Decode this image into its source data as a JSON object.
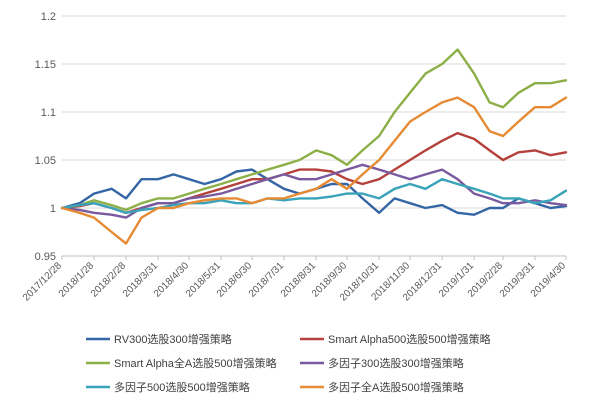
{
  "chart_data": {
    "type": "line",
    "title": "",
    "xlabel": "",
    "ylabel": "",
    "ylim": [
      0.95,
      1.2
    ],
    "y_ticks": [
      "0.95",
      "1",
      "1.05",
      "1.1",
      "1.15",
      "1.2"
    ],
    "x_ticks": [
      "2017/12/28",
      "2018/1/28",
      "2018/2/28",
      "2018/3/31",
      "2018/4/30",
      "2018/5/31",
      "2018/6/30",
      "2018/7/31",
      "2018/8/31",
      "2018/9/30",
      "2018/10/31",
      "2018/11/30",
      "2018/12/31",
      "2019/1/31",
      "2019/2/28",
      "2019/3/31",
      "2019/4/30"
    ],
    "grid": true,
    "legend_position": "bottom",
    "x": [
      "2017/12/28",
      "2018/1/14",
      "2018/1/28",
      "2018/2/14",
      "2018/2/28",
      "2018/3/15",
      "2018/3/31",
      "2018/4/15",
      "2018/4/30",
      "2018/5/15",
      "2018/5/31",
      "2018/6/15",
      "2018/6/30",
      "2018/7/15",
      "2018/7/31",
      "2018/8/15",
      "2018/8/31",
      "2018/9/15",
      "2018/9/30",
      "2018/10/15",
      "2018/10/31",
      "2018/11/15",
      "2018/11/30",
      "2018/12/15",
      "2018/12/31",
      "2019/1/15",
      "2019/1/31",
      "2019/2/15",
      "2019/2/28",
      "2019/3/15",
      "2019/3/31",
      "2019/4/15",
      "2019/4/30"
    ],
    "series": [
      {
        "name": "RV300选股300增强策略",
        "color": "#3466A5",
        "values": [
          1.0,
          1.005,
          1.015,
          1.02,
          1.01,
          1.03,
          1.03,
          1.035,
          1.03,
          1.025,
          1.03,
          1.038,
          1.04,
          1.03,
          1.02,
          1.015,
          1.02,
          1.025,
          1.025,
          1.01,
          0.995,
          1.01,
          1.005,
          1.0,
          1.003,
          0.995,
          0.993,
          1.0,
          1.0,
          1.01,
          1.005,
          1.0,
          1.002
        ]
      },
      {
        "name": "Smart Alpha500选股500增强策略",
        "color": "#B5413C",
        "values": [
          1.0,
          1.002,
          1.005,
          1.0,
          0.995,
          1.0,
          1.005,
          1.005,
          1.01,
          1.015,
          1.02,
          1.025,
          1.03,
          1.03,
          1.035,
          1.04,
          1.04,
          1.038,
          1.03,
          1.025,
          1.03,
          1.04,
          1.05,
          1.06,
          1.07,
          1.078,
          1.072,
          1.06,
          1.05,
          1.058,
          1.06,
          1.055,
          1.058
        ]
      },
      {
        "name": "Smart Alpha全A选股500增强策略",
        "color": "#8CAF47",
        "values": [
          1.0,
          1.003,
          1.008,
          1.003,
          0.998,
          1.005,
          1.01,
          1.01,
          1.015,
          1.02,
          1.025,
          1.03,
          1.035,
          1.04,
          1.045,
          1.05,
          1.06,
          1.055,
          1.045,
          1.06,
          1.075,
          1.1,
          1.12,
          1.14,
          1.15,
          1.165,
          1.14,
          1.11,
          1.105,
          1.12,
          1.13,
          1.13,
          1.133
        ]
      },
      {
        "name": "多因子300选股300增强策略",
        "color": "#7A5A9E",
        "values": [
          1.0,
          0.998,
          0.995,
          0.993,
          0.99,
          1.0,
          1.005,
          1.005,
          1.01,
          1.012,
          1.015,
          1.02,
          1.025,
          1.03,
          1.035,
          1.03,
          1.03,
          1.035,
          1.04,
          1.045,
          1.04,
          1.035,
          1.03,
          1.035,
          1.04,
          1.03,
          1.015,
          1.01,
          1.005,
          1.005,
          1.008,
          1.005,
          1.003
        ]
      },
      {
        "name": "多因子500选股500增强策略",
        "color": "#39A3BA",
        "values": [
          1.0,
          1.003,
          1.005,
          1.0,
          0.995,
          0.998,
          1.0,
          1.003,
          1.005,
          1.005,
          1.008,
          1.005,
          1.005,
          1.01,
          1.008,
          1.01,
          1.01,
          1.012,
          1.015,
          1.015,
          1.01,
          1.02,
          1.025,
          1.02,
          1.03,
          1.025,
          1.02,
          1.015,
          1.01,
          1.01,
          1.005,
          1.008,
          1.018
        ]
      },
      {
        "name": "多因子全A选股500增强策略",
        "color": "#E68A33",
        "values": [
          1.0,
          0.995,
          0.99,
          0.975,
          0.963,
          0.99,
          1.0,
          1.0,
          1.005,
          1.008,
          1.01,
          1.01,
          1.005,
          1.01,
          1.01,
          1.015,
          1.02,
          1.03,
          1.02,
          1.035,
          1.05,
          1.07,
          1.09,
          1.1,
          1.11,
          1.115,
          1.105,
          1.08,
          1.075,
          1.09,
          1.105,
          1.105,
          1.115
        ]
      }
    ]
  }
}
